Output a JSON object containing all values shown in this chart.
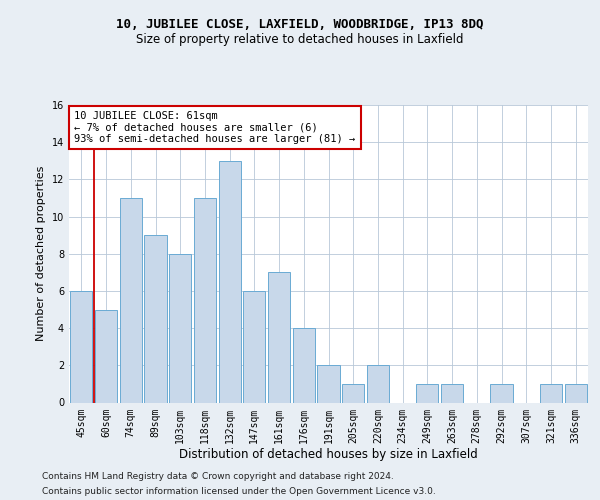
{
  "title1": "10, JUBILEE CLOSE, LAXFIELD, WOODBRIDGE, IP13 8DQ",
  "title2": "Size of property relative to detached houses in Laxfield",
  "xlabel": "Distribution of detached houses by size in Laxfield",
  "ylabel": "Number of detached properties",
  "categories": [
    "45sqm",
    "60sqm",
    "74sqm",
    "89sqm",
    "103sqm",
    "118sqm",
    "132sqm",
    "147sqm",
    "161sqm",
    "176sqm",
    "191sqm",
    "205sqm",
    "220sqm",
    "234sqm",
    "249sqm",
    "263sqm",
    "278sqm",
    "292sqm",
    "307sqm",
    "321sqm",
    "336sqm"
  ],
  "values": [
    6,
    5,
    11,
    9,
    8,
    11,
    13,
    6,
    7,
    4,
    2,
    1,
    2,
    0,
    1,
    1,
    0,
    1,
    0,
    1,
    1
  ],
  "bar_color": "#c8d8ea",
  "bar_edge_color": "#6aaad4",
  "annotation_box_text": "10 JUBILEE CLOSE: 61sqm\n← 7% of detached houses are smaller (6)\n93% of semi-detached houses are larger (81) →",
  "annotation_box_color": "#cc0000",
  "vline_x": 0.5,
  "vline_color": "#cc0000",
  "ylim": [
    0,
    16
  ],
  "yticks": [
    0,
    2,
    4,
    6,
    8,
    10,
    12,
    14,
    16
  ],
  "footer1": "Contains HM Land Registry data © Crown copyright and database right 2024.",
  "footer2": "Contains public sector information licensed under the Open Government Licence v3.0.",
  "bg_color": "#e8eef4",
  "plot_bg_color": "#ffffff",
  "title1_fontsize": 9,
  "title2_fontsize": 8.5,
  "xlabel_fontsize": 8.5,
  "ylabel_fontsize": 8,
  "tick_fontsize": 7,
  "annotation_fontsize": 7.5,
  "footer_fontsize": 6.5
}
